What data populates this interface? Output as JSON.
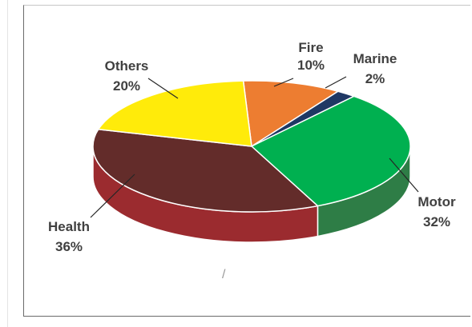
{
  "chart_data": {
    "type": "pie",
    "title": "",
    "categories": [
      "Fire",
      "Marine",
      "Motor",
      "Health",
      "Others"
    ],
    "values": [
      10,
      2,
      32,
      36,
      20
    ],
    "data_labels": [
      "10%",
      "2%",
      "32%",
      "36%",
      "20%"
    ],
    "colors": [
      "#ED7D31",
      "#1F3864",
      "#00B050",
      "#632C2A",
      "#FFEB0A"
    ],
    "side_colors": [
      "#B85F22",
      "#14264A",
      "#2E7D46",
      "#9B2B2F",
      "#C9B700"
    ],
    "style": "3d-pie",
    "legend": "none",
    "data_labels_position": "outside-with-leader-lines"
  },
  "decor": {
    "stray_mark": "/"
  }
}
